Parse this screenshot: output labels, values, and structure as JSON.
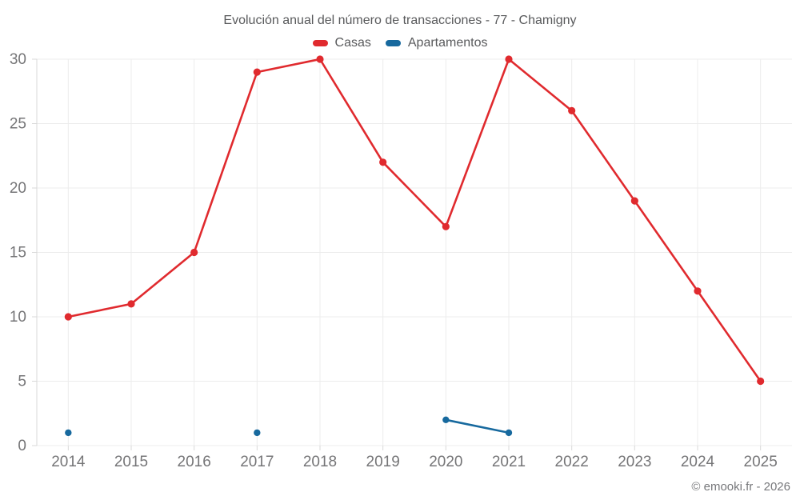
{
  "chart_data": {
    "type": "line",
    "title": "Evolución anual del número de transacciones - 77 - Chamigny",
    "categories": [
      "2014",
      "2015",
      "2016",
      "2017",
      "2018",
      "2019",
      "2020",
      "2021",
      "2022",
      "2023",
      "2024",
      "2025"
    ],
    "series": [
      {
        "name": "Casas",
        "color": "#e02a2e",
        "point_radius": 4.6,
        "line_width": 2.6,
        "values": [
          10,
          11,
          15,
          29,
          30,
          22,
          17,
          30,
          26,
          19,
          12,
          5
        ]
      },
      {
        "name": "Apartamentos",
        "color": "#17699e",
        "point_radius": 4.2,
        "line_width": 2.6,
        "values": [
          1,
          null,
          null,
          1,
          null,
          null,
          2,
          1,
          null,
          null,
          null,
          null
        ]
      }
    ],
    "ylim": [
      0,
      30
    ],
    "ytick_step": 5,
    "ytick_labels": [
      "0",
      "5",
      "10",
      "15",
      "20",
      "25",
      "30"
    ],
    "grid": true,
    "legend_position": "top"
  },
  "theme": {
    "grid_color": "#ececec",
    "axis_color": "#d9d9d9",
    "tick_label_color": "#757577",
    "title_color": "#595a5c",
    "copyright_color": "#77787b",
    "background": "#ffffff"
  },
  "footer": {
    "copyright": "© emooki.fr - 2026"
  }
}
